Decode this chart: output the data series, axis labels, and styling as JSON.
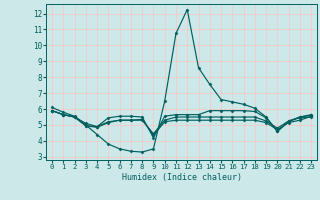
{
  "title": "",
  "xlabel": "Humidex (Indice chaleur)",
  "xlim": [
    -0.5,
    23.5
  ],
  "ylim": [
    2.8,
    12.6
  ],
  "xticks": [
    0,
    1,
    2,
    3,
    4,
    5,
    6,
    7,
    8,
    9,
    10,
    11,
    12,
    13,
    14,
    15,
    16,
    17,
    18,
    19,
    20,
    21,
    22,
    23
  ],
  "yticks": [
    3,
    4,
    5,
    6,
    7,
    8,
    9,
    10,
    11,
    12
  ],
  "bg_color": "#cce8e8",
  "grid_color": "#f5c8c8",
  "line_color": "#005f5f",
  "series": [
    {
      "x": [
        0,
        1,
        2,
        3,
        4,
        5,
        6,
        7,
        8,
        9,
        10,
        11,
        12,
        13,
        14,
        15,
        16,
        17,
        18,
        19,
        20,
        21,
        22,
        23
      ],
      "y": [
        6.1,
        5.8,
        5.55,
        5.0,
        4.4,
        3.8,
        3.5,
        3.35,
        3.3,
        3.5,
        6.5,
        10.75,
        12.25,
        8.6,
        7.55,
        6.6,
        6.45,
        6.3,
        6.05,
        5.5,
        4.6,
        5.25,
        5.45,
        5.5
      ]
    },
    {
      "x": [
        0,
        1,
        2,
        3,
        4,
        5,
        6,
        7,
        8,
        9,
        10,
        11,
        12,
        13,
        14,
        15,
        16,
        17,
        18,
        19,
        20,
        21,
        22,
        23
      ],
      "y": [
        5.9,
        5.65,
        5.5,
        5.1,
        4.9,
        5.45,
        5.55,
        5.55,
        5.5,
        4.2,
        5.55,
        5.65,
        5.65,
        5.65,
        5.9,
        5.9,
        5.9,
        5.9,
        5.85,
        5.45,
        4.6,
        5.2,
        5.5,
        5.6
      ]
    },
    {
      "x": [
        0,
        1,
        2,
        3,
        4,
        5,
        6,
        7,
        8,
        9,
        10,
        11,
        12,
        13,
        14,
        15,
        16,
        17,
        18,
        19,
        20,
        21,
        22,
        23
      ],
      "y": [
        5.9,
        5.65,
        5.5,
        4.95,
        4.9,
        5.2,
        5.3,
        5.3,
        5.35,
        4.35,
        5.2,
        5.3,
        5.3,
        5.3,
        5.3,
        5.3,
        5.3,
        5.3,
        5.3,
        5.15,
        4.7,
        5.15,
        5.3,
        5.55
      ]
    },
    {
      "x": [
        0,
        1,
        2,
        3,
        4,
        5,
        6,
        7,
        8,
        9,
        10,
        11,
        12,
        13,
        14,
        15,
        16,
        17,
        18,
        19,
        20,
        21,
        22,
        23
      ],
      "y": [
        5.9,
        5.65,
        5.5,
        4.95,
        4.85,
        5.15,
        5.3,
        5.3,
        5.3,
        4.45,
        5.3,
        5.5,
        5.5,
        5.5,
        5.5,
        5.5,
        5.5,
        5.5,
        5.5,
        5.25,
        4.8,
        5.25,
        5.5,
        5.65
      ]
    }
  ]
}
